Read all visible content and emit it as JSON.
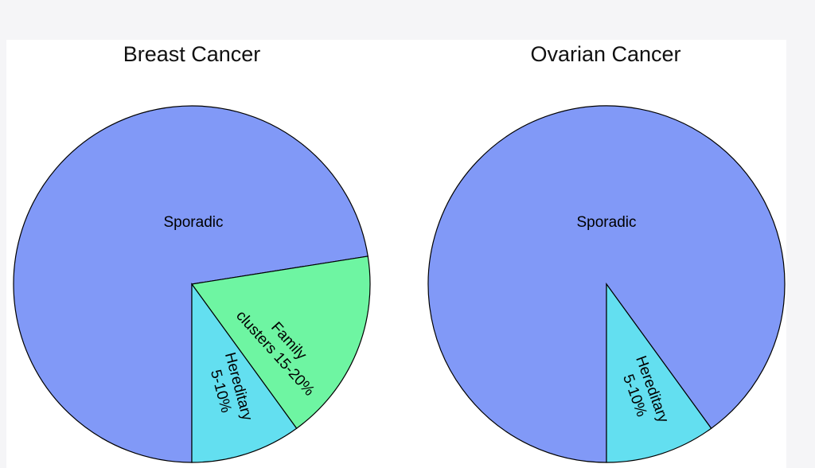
{
  "chart_data": [
    {
      "type": "pie",
      "title": "Breast Cancer",
      "slices": [
        {
          "label": "Sporadic",
          "value": 72.5,
          "color": "#8199f7"
        },
        {
          "label": "Family clusters 15-20%",
          "label_lines": [
            "Family",
            "clusters 15-20%"
          ],
          "value": 17.5,
          "color": "#6ef5a2"
        },
        {
          "label": "Hereditary 5-10%",
          "label_lines": [
            "Hereditary",
            "5-10%"
          ],
          "value": 10,
          "color": "#63dff0"
        }
      ]
    },
    {
      "type": "pie",
      "title": "Ovarian Cancer",
      "slices": [
        {
          "label": "Sporadic",
          "value": 90,
          "color": "#8199f7"
        },
        {
          "label": "Hereditary 5-10%",
          "label_lines": [
            "Hereditary",
            "5-10%"
          ],
          "value": 10,
          "color": "#63dff0"
        }
      ]
    }
  ]
}
